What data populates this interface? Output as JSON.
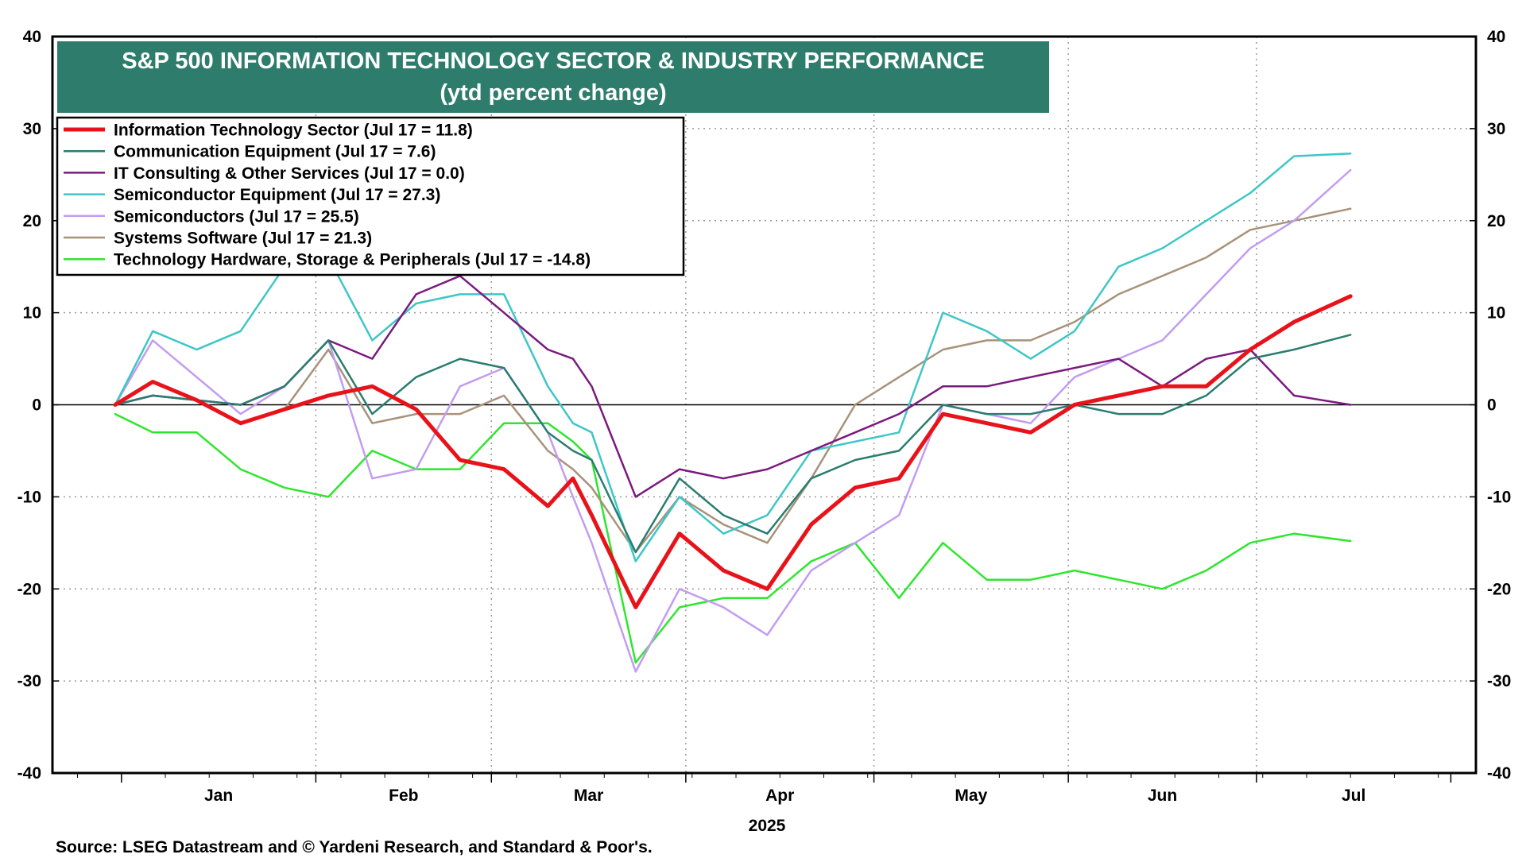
{
  "chart_data": {
    "type": "line",
    "title": "S&P 500 INFORMATION TECHNOLOGY SECTOR & INDUSTRY PERFORMANCE",
    "subtitle": "(ytd percent change)",
    "source": "Source: LSEG Datastream and © Yardeni Research, and Standard & Poor's.",
    "year_label": "2025",
    "months": [
      "Jan",
      "Feb",
      "Mar",
      "Apr",
      "May",
      "Jun",
      "Jul"
    ],
    "ylim": [
      -40,
      40
    ],
    "yticks": [
      -40,
      -30,
      -20,
      -10,
      0,
      10,
      20,
      30,
      40
    ],
    "ytick_labels": [
      "-40",
      "-30",
      "-20",
      "-10",
      "0",
      "10",
      "20",
      "30",
      "40"
    ],
    "grid": true,
    "legend_placement": "top-left",
    "x_days": [
      0,
      6,
      13,
      20,
      27,
      34,
      41,
      48,
      55,
      62,
      69,
      73,
      76,
      83,
      90,
      97,
      104,
      111,
      118,
      125,
      132,
      139,
      146,
      153,
      160,
      167,
      174,
      181,
      188,
      197
    ],
    "series": [
      {
        "name": "Information Technology Sector",
        "legend_label": "Information Technology Sector (Jul 17 = 11.8)",
        "color": "#e8131a",
        "width": 5,
        "values": [
          0,
          2.5,
          0.5,
          -2,
          -0.5,
          1,
          2,
          -0.5,
          -6,
          -7,
          -11,
          -8,
          -12,
          -22,
          -14,
          -18,
          -20,
          -13,
          -9,
          -8,
          -1,
          -2,
          -3,
          0,
          1,
          2,
          2,
          6,
          9,
          11.8
        ]
      },
      {
        "name": "Communication Equipment",
        "legend_label": "Communication Equipment (Jul 17 = 7.6)",
        "color": "#2a7d70",
        "width": 2.5,
        "values": [
          0,
          1,
          0.5,
          0,
          2,
          7,
          -1,
          3,
          5,
          4,
          -3,
          -5,
          -6,
          -16,
          -8,
          -12,
          -14,
          -8,
          -6,
          -5,
          0,
          -1,
          -1,
          0,
          -1,
          -1,
          1,
          5,
          6,
          7.6
        ]
      },
      {
        "name": "IT Consulting & Other Services",
        "legend_label": "IT Consulting & Other Services  (Jul 17 = 0.0)",
        "color": "#7b1a7e",
        "width": 2.5,
        "values": [
          0,
          1,
          0.5,
          0,
          2,
          7,
          5,
          12,
          14,
          10,
          6,
          5,
          2,
          -10,
          -7,
          -8,
          -7,
          -5,
          -3,
          -1,
          2,
          2,
          3,
          4,
          5,
          2,
          5,
          6,
          1,
          0
        ]
      },
      {
        "name": "Semiconductor Equipment",
        "legend_label": "Semiconductor Equipment (Jul 17 = 27.3)",
        "color": "#3ec6c6",
        "width": 2.5,
        "values": [
          0,
          8,
          6,
          8,
          15,
          16,
          7,
          11,
          12,
          12,
          2,
          -2,
          -3,
          -17,
          -10,
          -14,
          -12,
          -5,
          -4,
          -3,
          10,
          8,
          5,
          8,
          15,
          17,
          20,
          23,
          27,
          27.3
        ]
      },
      {
        "name": "Semiconductors",
        "legend_label": "Semiconductors (Jul 17 = 25.5)",
        "color": "#c39cf0",
        "width": 2.5,
        "values": [
          0,
          7,
          3,
          -1,
          2,
          7,
          -8,
          -7,
          2,
          4,
          -3,
          -10,
          -15,
          -29,
          -20,
          -22,
          -25,
          -18,
          -15,
          -12,
          0,
          -1,
          -2,
          3,
          5,
          7,
          12,
          17,
          20,
          25.5
        ]
      },
      {
        "name": "Systems Software",
        "legend_label": "Systems Software (Jul 17 = 21.3)",
        "color": "#a8927a",
        "width": 2.5,
        "values": [
          0,
          1,
          0.5,
          -2,
          -0.5,
          6,
          -2,
          -1,
          -1,
          1,
          -5,
          -7,
          -9,
          -16,
          -10,
          -13,
          -15,
          -8,
          0,
          3,
          6,
          7,
          7,
          9,
          12,
          14,
          16,
          19,
          20,
          21.3
        ]
      },
      {
        "name": "Technology Hardware, Storage & Peripherals",
        "legend_label": "Technology Hardware, Storage & Peripherals (Jul 17 = -14.8)",
        "color": "#2ee62e",
        "width": 2.5,
        "values": [
          -1,
          -3,
          -3,
          -7,
          -9,
          -10,
          -5,
          -7,
          -7,
          -2,
          -2,
          -4,
          -6,
          -28,
          -22,
          -21,
          -21,
          -17,
          -15,
          -21,
          -15,
          -19,
          -19,
          -18,
          -19,
          -20,
          -18,
          -15,
          -14,
          -14.8
        ]
      }
    ]
  }
}
